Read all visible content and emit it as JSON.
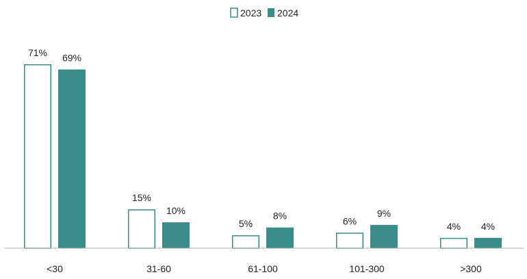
{
  "chart_data": {
    "type": "bar",
    "categories": [
      "<30",
      "31-60",
      "61-100",
      "101-300",
      ">300"
    ],
    "series": [
      {
        "name": "2023",
        "values": [
          71,
          15,
          5,
          6,
          4
        ],
        "labels": [
          "71%",
          "15%",
          "5%",
          "6%",
          "4%"
        ],
        "color": "#3a8c86",
        "fill": "#ffffff"
      },
      {
        "name": "2024",
        "values": [
          69,
          10,
          8,
          9,
          4
        ],
        "labels": [
          "69%",
          "10%",
          "8%",
          "9%",
          "4%"
        ],
        "color": "#3a8c86",
        "fill": "#3a8c86"
      }
    ],
    "ylim": [
      0,
      71
    ],
    "grid": false,
    "legend": "top-center"
  }
}
